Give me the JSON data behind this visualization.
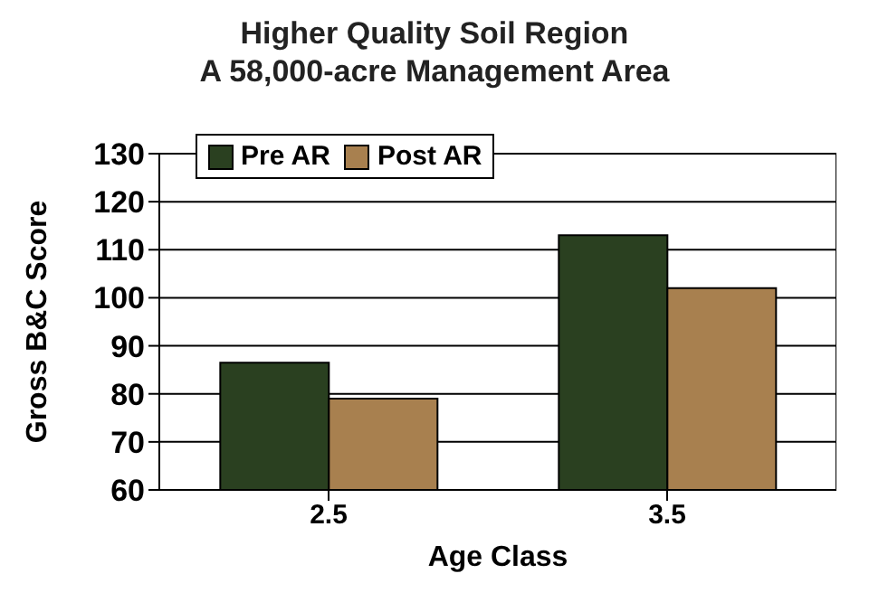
{
  "chart_data": {
    "type": "bar",
    "title": "Higher Quality Soil Region\nA 58,000-acre Management Area",
    "xlabel": "Age Class",
    "ylabel": "Gross B&C Score",
    "categories": [
      "2.5",
      "3.5"
    ],
    "series": [
      {
        "name": "Pre AR",
        "color": "#2a4020",
        "values": [
          86.5,
          113
        ]
      },
      {
        "name": "Post AR",
        "color": "#a8804f",
        "values": [
          79,
          102
        ]
      }
    ],
    "ylim": [
      60,
      130
    ],
    "yticks": [
      60,
      70,
      80,
      90,
      100,
      110,
      120,
      130
    ],
    "grid": "y",
    "legend": "top left"
  }
}
